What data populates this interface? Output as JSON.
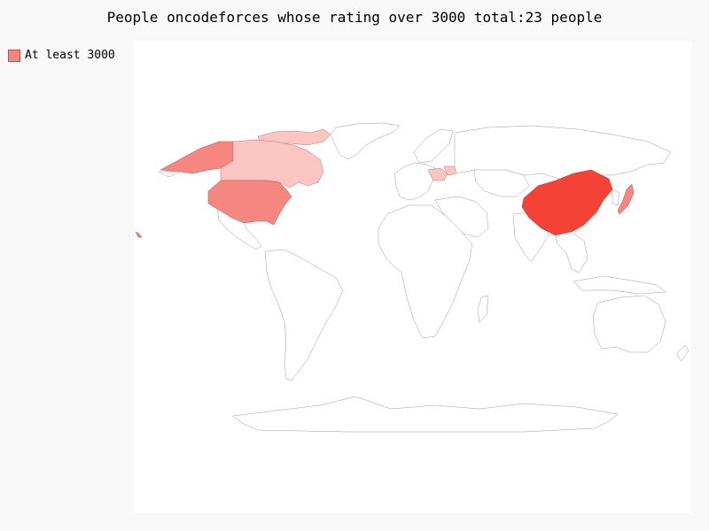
{
  "title": "People oncodeforces whose rating over 3000 total:23 people",
  "legend": {
    "label": "At least 3000",
    "color": "#f58780"
  },
  "colors": {
    "background": "#f8f8f8",
    "map_panel": "#ffffff",
    "level_low": "#fbc5c2",
    "level_mid": "#f58780",
    "level_high": "#f44336",
    "border": "#9a9a9a"
  },
  "highlighted_countries": [
    {
      "name": "China",
      "level": "high"
    },
    {
      "name": "United States",
      "level": "mid"
    },
    {
      "name": "Japan",
      "level": "mid"
    },
    {
      "name": "Canada",
      "level": "low"
    },
    {
      "name": "Poland",
      "level": "low"
    },
    {
      "name": "Belarus",
      "level": "low"
    }
  ]
}
